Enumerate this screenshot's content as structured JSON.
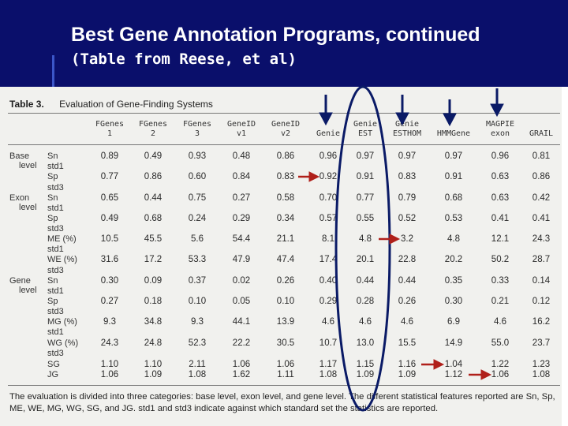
{
  "header": {
    "title": "Best Gene Annotation Programs, continued",
    "subtitle": "(Table from Reese, et al)"
  },
  "table": {
    "label": "Table 3.",
    "title": "Evaluation of Gene-Finding Systems",
    "columns": [
      "FGenes\n1",
      "FGenes\n2",
      "FGenes\n3",
      "GeneID\nv1",
      "GeneID\nv2",
      "\nGenie",
      "Genie\nEST",
      "Genie\nESTHOM",
      "\nHMMGene",
      "MAGPIE\nexon",
      "\nGRAIL"
    ],
    "groups": [
      {
        "line1": "Base",
        "line2": "level"
      },
      {
        "line1": "Exon",
        "line2": "level"
      },
      {
        "line1": "Gene",
        "line2": "level"
      }
    ],
    "rows": [
      {
        "metric": "Sn",
        "std": "std1",
        "values": [
          "0.89",
          "0.49",
          "0.93",
          "0.48",
          "0.86",
          "0.96",
          "0.97",
          "0.97",
          "0.97",
          "0.96",
          "0.81"
        ]
      },
      {
        "metric": "Sp",
        "std": "std3",
        "values": [
          "0.77",
          "0.86",
          "0.60",
          "0.84",
          "0.83",
          "0.92",
          "0.91",
          "0.83",
          "0.91",
          "0.63",
          "0.86"
        ]
      },
      {
        "metric": "Sn",
        "std": "std1",
        "values": [
          "0.65",
          "0.44",
          "0.75",
          "0.27",
          "0.58",
          "0.70",
          "0.77",
          "0.79",
          "0.68",
          "0.63",
          "0.42"
        ]
      },
      {
        "metric": "Sp",
        "std": "std3",
        "values": [
          "0.49",
          "0.68",
          "0.24",
          "0.29",
          "0.34",
          "0.57",
          "0.55",
          "0.52",
          "0.53",
          "0.41",
          "0.41"
        ]
      },
      {
        "metric": "ME (%)",
        "std": "std1",
        "values": [
          "10.5",
          "45.5",
          "5.6",
          "54.4",
          "21.1",
          "8.1",
          "4.8",
          "3.2",
          "4.8",
          "12.1",
          "24.3"
        ]
      },
      {
        "metric": "WE (%)",
        "std": "std3",
        "values": [
          "31.6",
          "17.2",
          "53.3",
          "47.9",
          "47.4",
          "17.4",
          "20.1",
          "22.8",
          "20.2",
          "50.2",
          "28.7"
        ]
      },
      {
        "metric": "Sn",
        "std": "std1",
        "values": [
          "0.30",
          "0.09",
          "0.37",
          "0.02",
          "0.26",
          "0.40",
          "0.44",
          "0.44",
          "0.35",
          "0.33",
          "0.14"
        ]
      },
      {
        "metric": "Sp",
        "std": "std3",
        "values": [
          "0.27",
          "0.18",
          "0.10",
          "0.05",
          "0.10",
          "0.29",
          "0.28",
          "0.26",
          "0.30",
          "0.21",
          "0.12"
        ]
      },
      {
        "metric": "MG (%)",
        "std": "std1",
        "values": [
          "9.3",
          "34.8",
          "9.3",
          "44.1",
          "13.9",
          "4.6",
          "4.6",
          "4.6",
          "6.9",
          "4.6",
          "16.2"
        ]
      },
      {
        "metric": "WG (%)",
        "std": "std3",
        "values": [
          "24.3",
          "24.8",
          "52.3",
          "22.2",
          "30.5",
          "10.7",
          "13.0",
          "15.5",
          "14.9",
          "55.0",
          "23.7"
        ]
      },
      {
        "metric": "SG",
        "std": "",
        "values": [
          "1.10",
          "1.10",
          "2.11",
          "1.06",
          "1.06",
          "1.17",
          "1.15",
          "1.16",
          "1.04",
          "1.22",
          "1.23"
        ]
      },
      {
        "metric": "JG",
        "std": "",
        "values": [
          "1.06",
          "1.09",
          "1.08",
          "1.62",
          "1.11",
          "1.08",
          "1.09",
          "1.09",
          "1.12",
          "1.06",
          "1.08"
        ]
      }
    ],
    "caption": "The evaluation is divided into three categories: base level, exon level, and gene level. The different statistical features reported are Sn, Sp, ME, WE, MG, WG, SG, and JG. std1 and std3 indicate against which standard set the statistics are reported."
  },
  "colors": {
    "header_bg": "#0a0f6b",
    "header_text": "#ffffff",
    "annotation": "#0a1a66",
    "arrow_red": "#b0201a"
  }
}
